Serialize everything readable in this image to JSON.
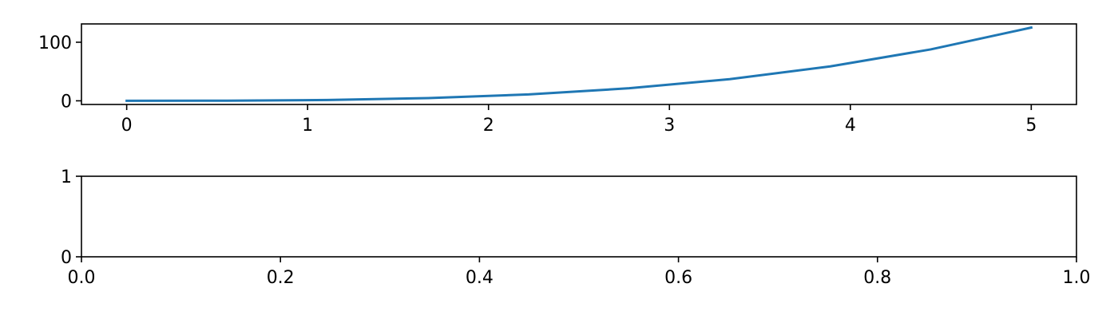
{
  "chart_data": [
    {
      "type": "line",
      "title": "",
      "xlabel": "",
      "ylabel": "",
      "xlim": [
        -0.25,
        5.25
      ],
      "ylim": [
        -6.25,
        131.25
      ],
      "grid": false,
      "xticks": [
        0,
        1,
        2,
        3,
        4,
        5
      ],
      "xtick_labels": [
        "0",
        "1",
        "2",
        "3",
        "4",
        "5"
      ],
      "yticks": [
        0,
        100
      ],
      "ytick_labels": [
        "0",
        "100"
      ],
      "line_color": "#1f77b4",
      "series": [
        {
          "x": [
            0,
            0.5556,
            1.1111,
            1.6667,
            2.2222,
            2.7778,
            3.3333,
            3.8889,
            4.4444,
            5
          ],
          "y": [
            0,
            0.17,
            1.37,
            4.63,
            10.97,
            21.43,
            37.04,
            58.81,
            87.79,
            125
          ]
        }
      ]
    },
    {
      "type": "line",
      "title": "",
      "xlabel": "",
      "ylabel": "",
      "xlim": [
        0,
        1
      ],
      "ylim": [
        0,
        1
      ],
      "grid": false,
      "xticks": [
        0,
        0.2,
        0.4,
        0.6,
        0.8,
        1
      ],
      "xtick_labels": [
        "0.0",
        "0.2",
        "0.4",
        "0.6",
        "0.8",
        "1.0"
      ],
      "yticks": [
        0,
        1
      ],
      "ytick_labels": [
        "0",
        "1"
      ],
      "series": []
    }
  ]
}
